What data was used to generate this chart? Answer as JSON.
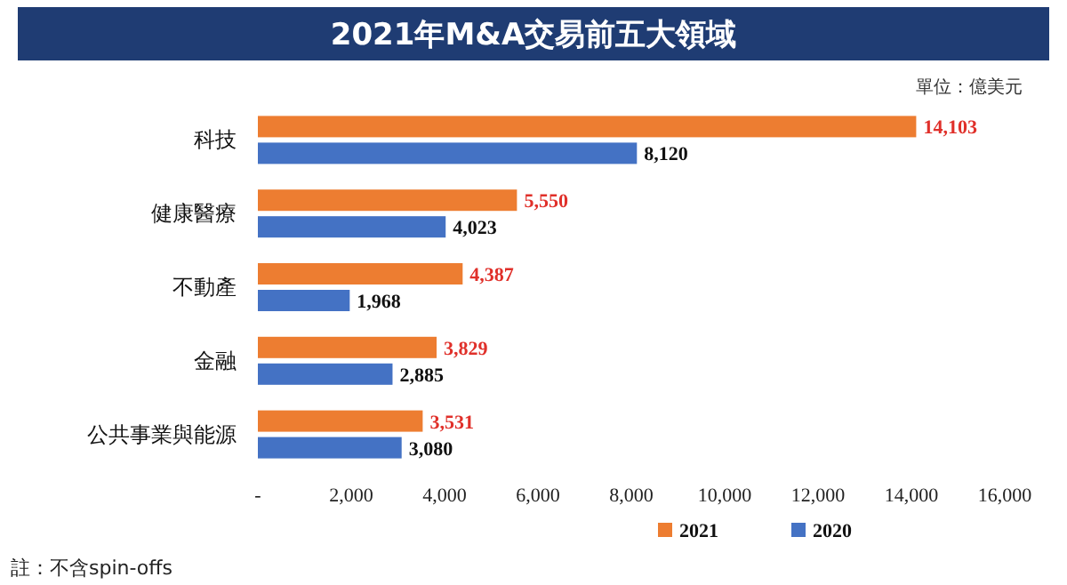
{
  "chart_data": {
    "type": "bar",
    "orientation": "horizontal",
    "title": "2021年M&A交易前五大領域",
    "categories": [
      "科技",
      "健康醫療",
      "不動產",
      "金融",
      "公共事業與能源"
    ],
    "series": [
      {
        "name": "2021",
        "color": "#ed7d31",
        "values": [
          14103,
          5550,
          4387,
          3829,
          3531
        ],
        "value_labels": [
          "14,103",
          "5,550",
          "4,387",
          "3,829",
          "3,531"
        ]
      },
      {
        "name": "2020",
        "color": "#4472c4",
        "values": [
          8120,
          4023,
          1968,
          2885,
          3080
        ],
        "value_labels": [
          "8,120",
          "4,023",
          "1,968",
          "2,885",
          "3,080"
        ]
      }
    ],
    "xlim": [
      0,
      16000
    ],
    "xticks": [
      {
        "value": 0,
        "label": "-"
      },
      {
        "value": 2000,
        "label": "2,000"
      },
      {
        "value": 4000,
        "label": "4,000"
      },
      {
        "value": 6000,
        "label": "6,000"
      },
      {
        "value": 8000,
        "label": "8,000"
      },
      {
        "value": 10000,
        "label": "10,000"
      },
      {
        "value": 12000,
        "label": "12,000"
      },
      {
        "value": 14000,
        "label": "14,000"
      },
      {
        "value": 16000,
        "label": "16,000"
      }
    ],
    "grid": false,
    "legend": "bottom",
    "annotations": [
      "單位：億美元",
      "註：不含spin-offs"
    ]
  }
}
